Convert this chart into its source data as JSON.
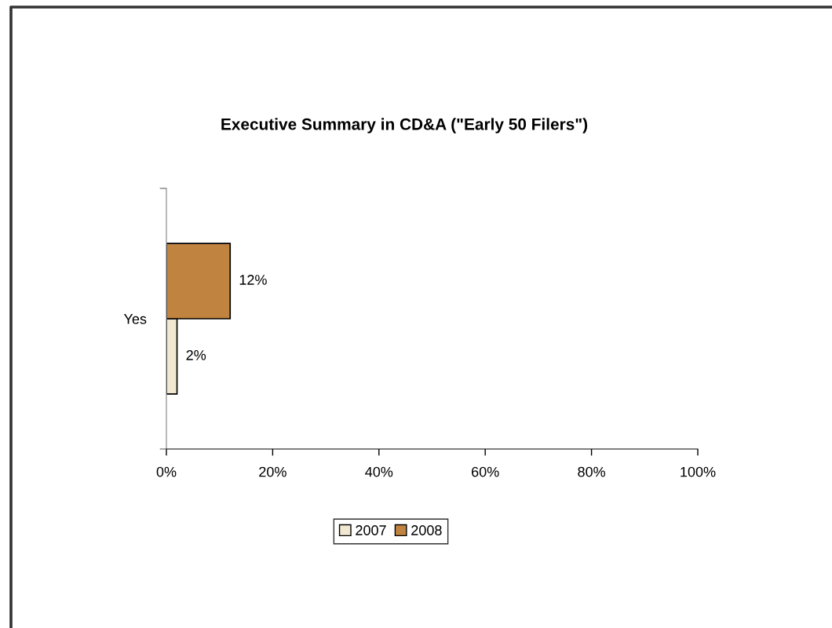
{
  "chart_data": {
    "type": "bar",
    "orientation": "horizontal",
    "title": "Executive Summary in CD&A (\"Early 50 Filers\")",
    "categories": [
      "Yes"
    ],
    "series": [
      {
        "name": "2007",
        "color": "#f0e8d0",
        "values": [
          2
        ],
        "value_labels": [
          "2%"
        ]
      },
      {
        "name": "2008",
        "color": "#c08440",
        "values": [
          12
        ],
        "value_labels": [
          "12%"
        ]
      }
    ],
    "xlim": [
      0,
      100
    ],
    "xticks": [
      {
        "value": 0,
        "label": "0%"
      },
      {
        "value": 20,
        "label": "20%"
      },
      {
        "value": 40,
        "label": "40%"
      },
      {
        "value": 60,
        "label": "60%"
      },
      {
        "value": 80,
        "label": "80%"
      },
      {
        "value": 100,
        "label": "100%"
      }
    ],
    "legend": "bottom"
  }
}
